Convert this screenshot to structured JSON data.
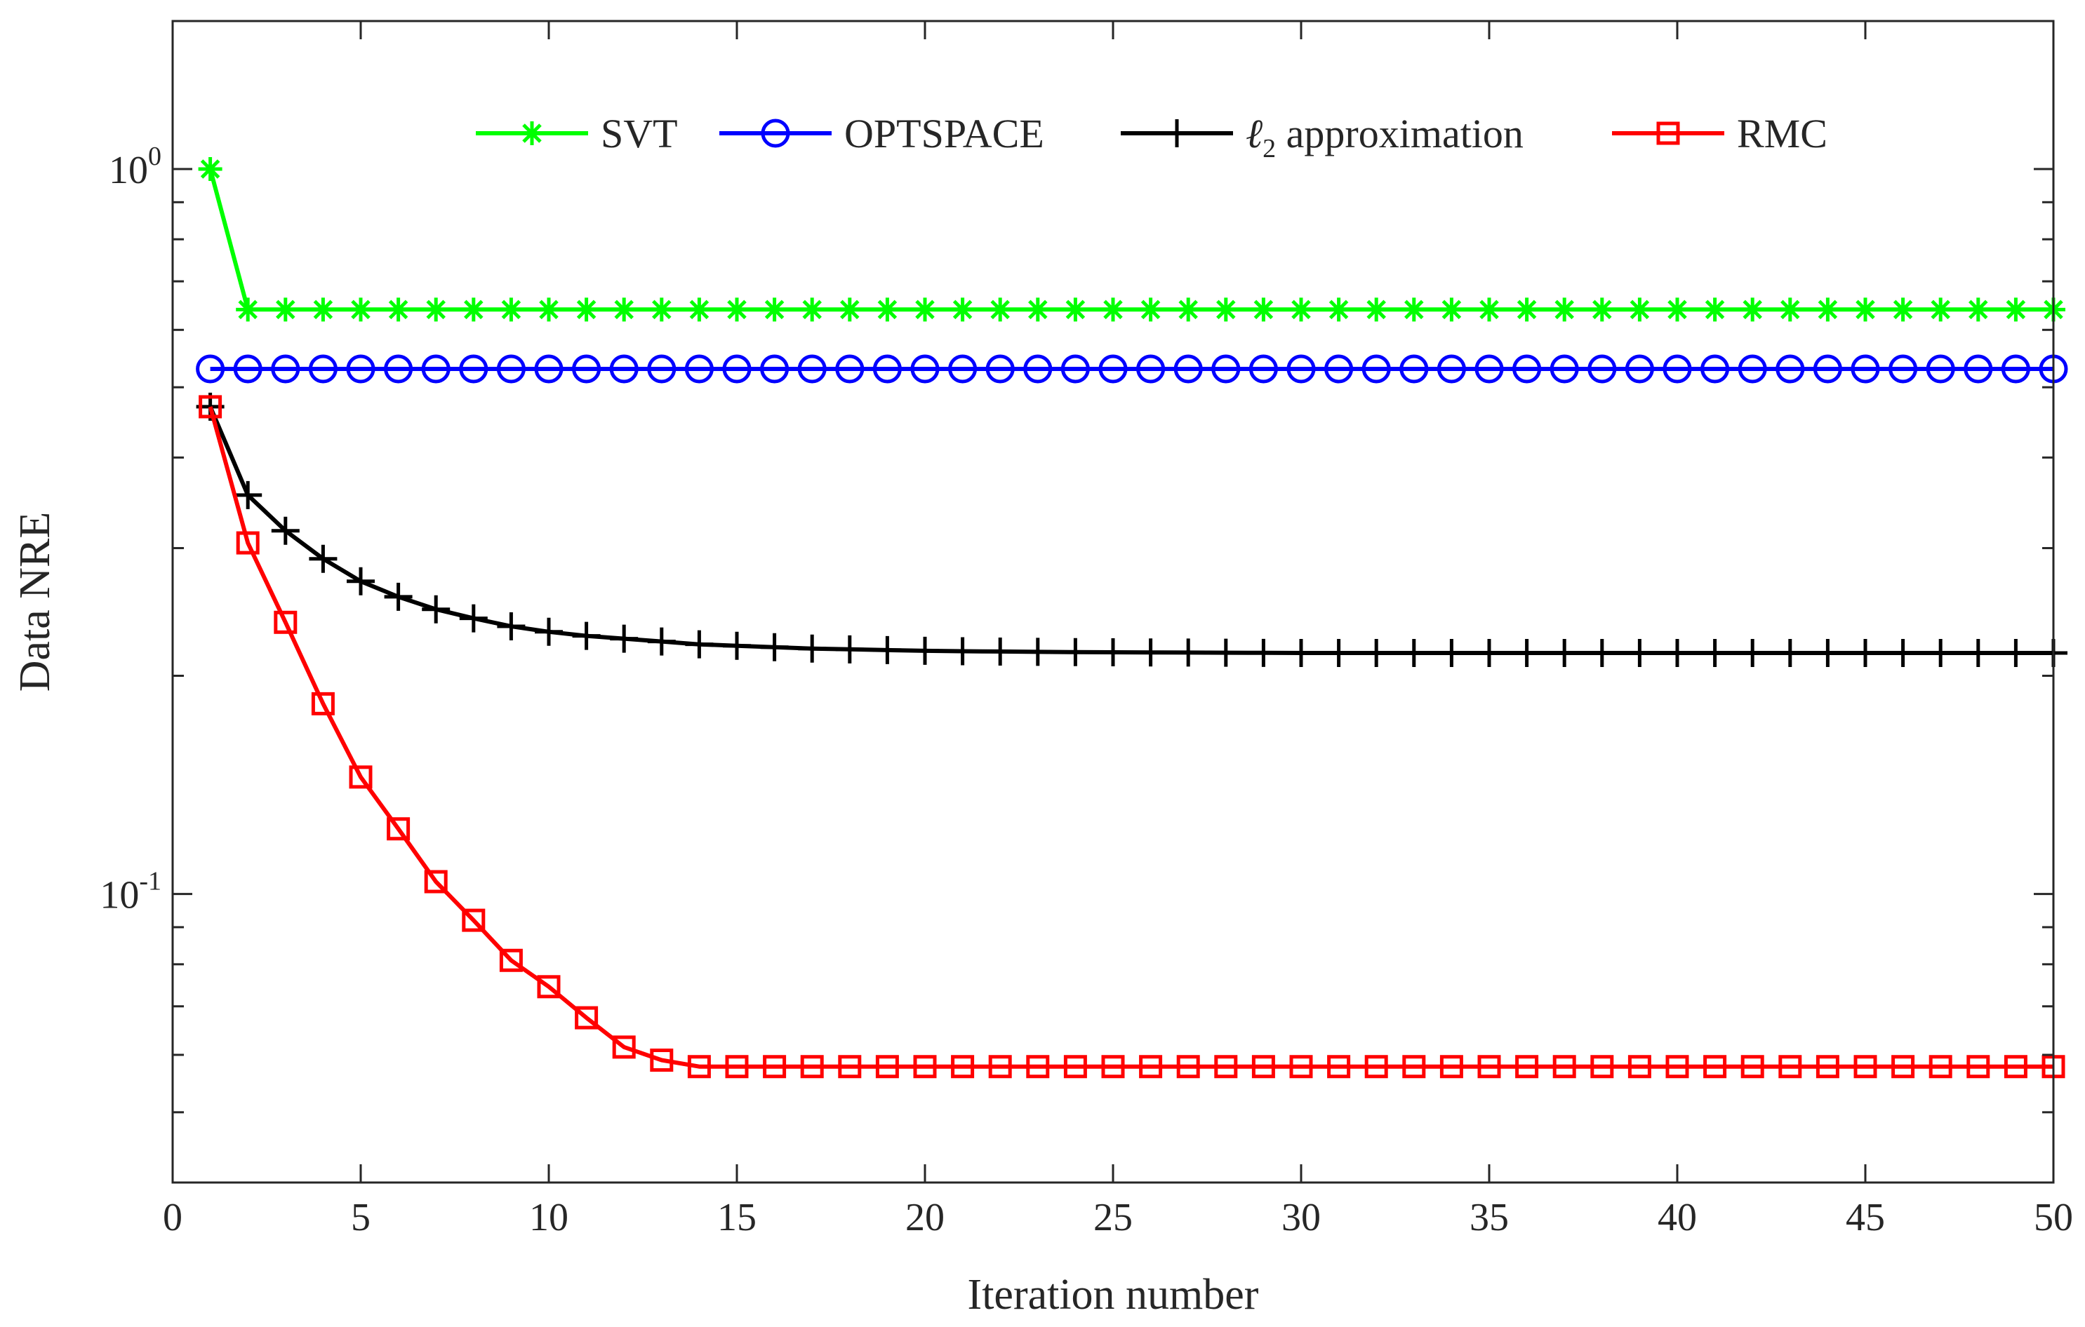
{
  "chart_data": {
    "type": "line",
    "title": "",
    "xlabel": "Iteration number",
    "ylabel": "Data NRE",
    "xlim": [
      0,
      50
    ],
    "ylim": [
      0.04,
      1.6
    ],
    "yscale": "log",
    "grid": false,
    "legend_position": "top",
    "x_ticks": [
      0,
      5,
      10,
      15,
      20,
      25,
      30,
      35,
      40,
      45,
      50
    ],
    "x_tick_labels": [
      "0",
      "5",
      "10",
      "15",
      "20",
      "25",
      "30",
      "35",
      "40",
      "45",
      "50"
    ],
    "y_major_ticks": [
      {
        "value": 1.0,
        "base": "10",
        "exponent": "0"
      },
      {
        "value": 0.1,
        "base": "10",
        "exponent": "-1"
      }
    ],
    "y_minor_ticks": [
      0.05,
      0.06,
      0.07,
      0.08,
      0.09,
      0.2,
      0.3,
      0.4,
      0.5,
      0.6,
      0.7,
      0.8,
      0.9
    ],
    "x": [
      1,
      2,
      3,
      4,
      5,
      6,
      7,
      8,
      9,
      10,
      11,
      12,
      13,
      14,
      15,
      16,
      17,
      18,
      19,
      20,
      21,
      22,
      23,
      24,
      25,
      26,
      27,
      28,
      29,
      30,
      31,
      32,
      33,
      34,
      35,
      36,
      37,
      38,
      39,
      40,
      41,
      42,
      43,
      44,
      45,
      46,
      47,
      48,
      49,
      50
    ],
    "series": [
      {
        "name": "SVT",
        "legend_label": "SVT",
        "color": "#00ff00",
        "marker": "asterisk",
        "values": [
          1.0,
          0.64,
          0.64,
          0.64,
          0.64,
          0.64,
          0.64,
          0.64,
          0.64,
          0.64,
          0.64,
          0.64,
          0.64,
          0.64,
          0.64,
          0.64,
          0.64,
          0.64,
          0.64,
          0.64,
          0.64,
          0.64,
          0.64,
          0.64,
          0.64,
          0.64,
          0.64,
          0.64,
          0.64,
          0.64,
          0.64,
          0.64,
          0.64,
          0.64,
          0.64,
          0.64,
          0.64,
          0.64,
          0.64,
          0.64,
          0.64,
          0.64,
          0.64,
          0.64,
          0.64,
          0.64,
          0.64,
          0.64,
          0.64,
          0.64
        ]
      },
      {
        "name": "OPTSPACE",
        "legend_label": "OPTSPACE",
        "color": "#0000ff",
        "marker": "circle",
        "values": [
          0.53,
          0.53,
          0.53,
          0.53,
          0.53,
          0.53,
          0.53,
          0.53,
          0.53,
          0.53,
          0.53,
          0.53,
          0.53,
          0.53,
          0.53,
          0.53,
          0.53,
          0.53,
          0.53,
          0.53,
          0.53,
          0.53,
          0.53,
          0.53,
          0.53,
          0.53,
          0.53,
          0.53,
          0.53,
          0.53,
          0.53,
          0.53,
          0.53,
          0.53,
          0.53,
          0.53,
          0.53,
          0.53,
          0.53,
          0.53,
          0.53,
          0.53,
          0.53,
          0.53,
          0.53,
          0.53,
          0.53,
          0.53,
          0.53,
          0.53
        ]
      },
      {
        "name": "ℓ2 approximation",
        "legend_label": "ℓ",
        "legend_subscript": "2",
        "legend_suffix": " approximation",
        "color": "#000000",
        "marker": "plus",
        "values": [
          0.47,
          0.355,
          0.317,
          0.29,
          0.27,
          0.257,
          0.247,
          0.24,
          0.234,
          0.23,
          0.227,
          0.225,
          0.223,
          0.221,
          0.22,
          0.219,
          0.218,
          0.2175,
          0.217,
          0.2165,
          0.2162,
          0.216,
          0.2158,
          0.2156,
          0.2155,
          0.2154,
          0.2153,
          0.2152,
          0.2151,
          0.215,
          0.215,
          0.215,
          0.215,
          0.215,
          0.215,
          0.215,
          0.215,
          0.215,
          0.215,
          0.215,
          0.215,
          0.215,
          0.215,
          0.215,
          0.215,
          0.215,
          0.215,
          0.215,
          0.215,
          0.215
        ]
      },
      {
        "name": "RMC",
        "legend_label": "RMC",
        "color": "#ff0000",
        "marker": "square",
        "values": [
          0.47,
          0.305,
          0.237,
          0.183,
          0.145,
          0.123,
          0.104,
          0.092,
          0.081,
          0.0745,
          0.0675,
          0.0615,
          0.059,
          0.0578,
          0.0578,
          0.0578,
          0.0578,
          0.0578,
          0.0578,
          0.0578,
          0.0578,
          0.0578,
          0.0578,
          0.0578,
          0.0578,
          0.0578,
          0.0578,
          0.0578,
          0.0578,
          0.0578,
          0.0578,
          0.0578,
          0.0578,
          0.0578,
          0.0578,
          0.0578,
          0.0578,
          0.0578,
          0.0578,
          0.0578,
          0.0578,
          0.0578,
          0.0578,
          0.0578,
          0.0578,
          0.0578,
          0.0578,
          0.0578,
          0.0578,
          0.0578
        ]
      }
    ]
  }
}
